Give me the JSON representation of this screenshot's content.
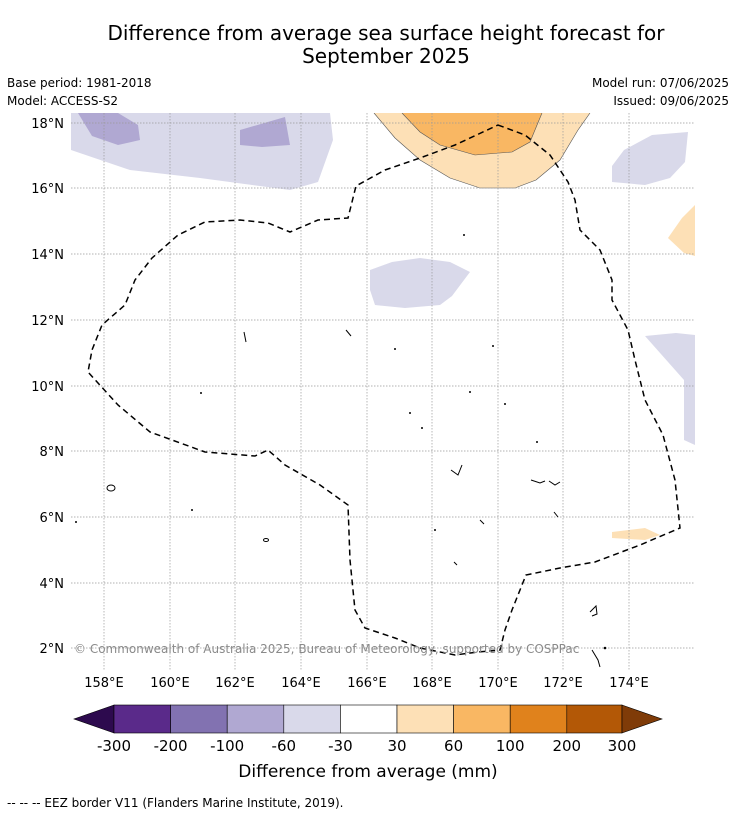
{
  "title_line1": "Difference from average sea surface height forecast for",
  "title_line2": "September 2025",
  "meta_left": [
    "Base period: 1981-2018",
    "Model: ACCESS-S2"
  ],
  "meta_right": [
    "Model run: 07/06/2025",
    "Issued: 09/06/2025"
  ],
  "map": {
    "lat_labels": [
      "18°N",
      "16°N",
      "14°N",
      "12°N",
      "10°N",
      "8°N",
      "6°N",
      "4°N",
      "2°N"
    ],
    "lat_values": [
      18,
      16,
      14,
      12,
      10,
      8,
      6,
      4,
      2
    ],
    "lon_labels": [
      "158°E",
      "160°E",
      "162°E",
      "164°E",
      "166°E",
      "168°E",
      "170°E",
      "172°E",
      "174°E"
    ],
    "lon_values": [
      158,
      160,
      162,
      164,
      166,
      168,
      170,
      172,
      174
    ],
    "copyright": "© Commonwealth of Australia 2025, Bureau of Meteorology, supported by COSPPac"
  },
  "colorbar": {
    "title": "Difference from average (mm)",
    "ticks": [
      "-300",
      "-200",
      "-100",
      "-60",
      "-30",
      "30",
      "60",
      "100",
      "200",
      "300"
    ],
    "colors": [
      "#2d0a4e",
      "#5a2a8a",
      "#8272b1",
      "#b0a8d2",
      "#d9d9ea",
      "#ffffff",
      "#fde0b6",
      "#f9b763",
      "#e0821c",
      "#b35806",
      "#7f3b08"
    ]
  },
  "footer": "-- -- -- EEZ border V11 (Flanders Marine Institute, 2019)."
}
